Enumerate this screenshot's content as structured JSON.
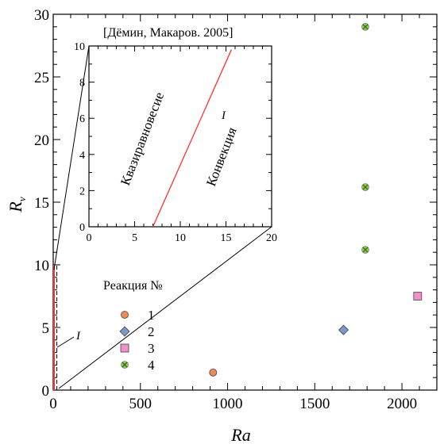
{
  "chart_data": [
    {
      "type": "scatter",
      "xlabel": "Ra",
      "ylabel_main": "R",
      "ylabel_sub": "v",
      "xlim": [
        0,
        2200
      ],
      "ylim": [
        0,
        30
      ],
      "x_ticks": [
        0,
        500,
        1000,
        1500,
        2000
      ],
      "y_ticks": [
        0,
        5,
        10,
        15,
        20,
        25,
        30
      ],
      "legend": {
        "title": "Реакция №",
        "placement": "lower-left",
        "entries": [
          {
            "label": "1",
            "marker": "circle",
            "color": "#f08a55"
          },
          {
            "label": "2",
            "marker": "diamond",
            "color": "#7f96c8"
          },
          {
            "label": "3",
            "marker": "square",
            "color": "#f090c8"
          },
          {
            "label": "4",
            "marker": "x-circle",
            "color": "#90cc50"
          }
        ]
      },
      "series": [
        {
          "name": "1",
          "points": [
            [
              917,
              1.4
            ]
          ]
        },
        {
          "name": "2",
          "points": [
            [
              1665,
              4.8
            ]
          ]
        },
        {
          "name": "3",
          "points": [
            [
              2090,
              7.5
            ]
          ]
        },
        {
          "name": "4",
          "points": [
            [
              1790,
              29.0
            ],
            [
              1790,
              16.2
            ],
            [
              1790,
              11.2
            ]
          ]
        }
      ],
      "line_I": {
        "label": "I",
        "x": [
          0,
          30
        ],
        "y": [
          0,
          10
        ],
        "color": "#ff3030"
      },
      "line_I_dashed": {
        "x": [
          30,
          30
        ],
        "y": [
          0,
          10
        ]
      }
    },
    {
      "type": "line",
      "title": "[Дёмин, Макаров. 2005]",
      "xlim": [
        0,
        20
      ],
      "ylim": [
        0,
        10
      ],
      "x_ticks": [
        0,
        5,
        10,
        15,
        20
      ],
      "y_ticks": [
        0,
        2,
        4,
        6,
        8,
        10
      ],
      "series": [
        {
          "name": "I",
          "x": [
            7,
            15.6
          ],
          "y": [
            0,
            9.8
          ],
          "color": "#ff3030"
        }
      ],
      "regions": [
        "Квазиравновесие",
        "Конвекция"
      ]
    }
  ]
}
